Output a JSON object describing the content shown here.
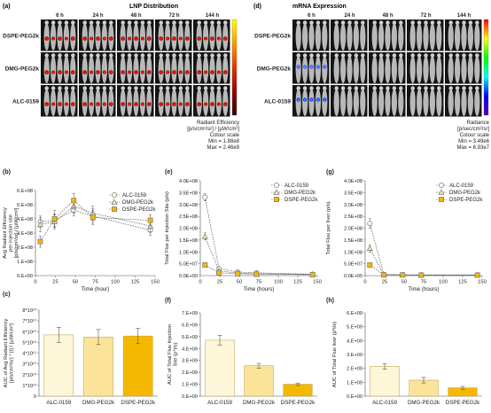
{
  "panels": {
    "a": {
      "letter": "(a)",
      "title": "LNP Distribution",
      "timepoints": [
        "6 h",
        "24 h",
        "48 h",
        "72 h",
        "144 h"
      ],
      "rows": [
        "DSPE-PEG2k",
        "DMG-PEG2k",
        "ALC-0159"
      ],
      "scale_title": "Radiant Efficiency",
      "scale_units": "[p/s/cm²/sr] / [µW/cm²]",
      "scale_label": "Colour scale",
      "scale_min": "Min = 1.88e8",
      "scale_max": "Max = 2.46e9",
      "colormap": [
        "#ffff00",
        "#ff9900",
        "#e63300",
        "#990000",
        "#330000"
      ]
    },
    "d": {
      "letter": "(d)",
      "title": "mRNA Expression",
      "timepoints": [
        "6 h",
        "24 h",
        "48 h",
        "72 h",
        "144 h"
      ],
      "rows": [
        "DSPE-PEG2k",
        "DMG-PEG2k",
        "ALC-0159"
      ],
      "scale_title": "Radiance",
      "scale_units": "[p/sec/cm²/sr]",
      "scale_label": "Colour scale",
      "scale_min": "Min = 3.49e6",
      "scale_max": "Max = 6.93e7",
      "colormap": [
        "#ff0000",
        "#ffff00",
        "#00ff00",
        "#00ffff",
        "#0000ff",
        "#5500aa"
      ]
    }
  },
  "chart_data": [
    {
      "id": "b",
      "letter": "(b)",
      "type": "line",
      "xlabel": "Time (hour)",
      "ylabel": "Avg Radiant Efficiency per injection site [p/s/cm²/sr] / [µW/cm²]",
      "ylabel_lines": [
        "Avg Radiant Efficiency",
        "per injection site",
        "[p/s/cm²/sr] / [µW/cm²]"
      ],
      "xlim": [
        0,
        150
      ],
      "ylim": [
        0,
        600000000
      ],
      "xticks": [
        0,
        25,
        50,
        75,
        100,
        125,
        150
      ],
      "yticks": [
        0,
        100000000,
        200000000,
        300000000,
        400000000,
        500000000,
        600000000
      ],
      "ytick_labels": [
        "0.E+00",
        "1.E+08",
        "2.E+08",
        "3.E+08",
        "4.E+08",
        "5.E+08",
        "6.E+08"
      ],
      "x": [
        6,
        24,
        48,
        72,
        144
      ],
      "legend_position": "top-right",
      "series": [
        {
          "name": "ALC-0159",
          "marker": "circle",
          "color": "#7a7a7a",
          "fill": "#ffffff",
          "values": [
            380000000,
            390000000,
            460000000,
            420000000,
            320000000
          ],
          "errors": [
            40000000,
            45000000,
            40000000,
            50000000,
            35000000
          ]
        },
        {
          "name": "DMG-PEG2k",
          "marker": "triangle",
          "color": "#7a7a7a",
          "fill": "#f5e6a8",
          "values": [
            360000000,
            380000000,
            490000000,
            440000000,
            350000000
          ],
          "errors": [
            50000000,
            50000000,
            50000000,
            50000000,
            40000000
          ]
        },
        {
          "name": "DSPE-PEG2k",
          "marker": "square",
          "color": "#7a7a7a",
          "fill": "#f2b800",
          "values": [
            240000000,
            400000000,
            530000000,
            410000000,
            390000000
          ],
          "errors": [
            40000000,
            60000000,
            50000000,
            50000000,
            40000000
          ]
        }
      ]
    },
    {
      "id": "e",
      "letter": "(e)",
      "type": "line",
      "xlabel": "Time (hours)",
      "ylabel": "Total Flux per Injection Site (p/s)",
      "ylabel_lines": [
        "Total Flux per Injection Site (p/s)"
      ],
      "xlim": [
        0,
        150
      ],
      "ylim": [
        0,
        400000000
      ],
      "xticks": [
        0,
        25,
        50,
        75,
        100,
        125,
        150
      ],
      "yticks": [
        0,
        50000000,
        100000000,
        150000000,
        200000000,
        250000000,
        300000000,
        350000000,
        400000000
      ],
      "ytick_labels": [
        "0.0E+00",
        "5.0E+07",
        "1.0E+08",
        "1.5E+08",
        "2.0E+08",
        "2.5E+08",
        "3.0E+08",
        "3.5E+08",
        "4.0E+08"
      ],
      "x": [
        6,
        24,
        48,
        72,
        144
      ],
      "legend_position": "top-right",
      "series": [
        {
          "name": "ALC-0159",
          "marker": "circle",
          "color": "#7a7a7a",
          "fill": "#ffffff",
          "values": [
            330000000,
            30000000,
            15000000,
            12000000,
            6000000
          ],
          "errors": [
            15000000,
            5000000,
            3000000,
            2000000,
            1000000
          ]
        },
        {
          "name": "DMG-PEG2k",
          "marker": "triangle",
          "color": "#7a7a7a",
          "fill": "#f5e6a8",
          "values": [
            165000000,
            20000000,
            10000000,
            8000000,
            5000000
          ],
          "errors": [
            15000000,
            4000000,
            2000000,
            2000000,
            1000000
          ]
        },
        {
          "name": "DSPE-PEG2k",
          "marker": "square",
          "color": "#7a7a7a",
          "fill": "#f2b800",
          "values": [
            45000000,
            12000000,
            8000000,
            6000000,
            4000000
          ],
          "errors": [
            8000000,
            3000000,
            2000000,
            1000000,
            1000000
          ]
        }
      ]
    },
    {
      "id": "g",
      "letter": "(g)",
      "type": "line",
      "xlabel": "Time (hours)",
      "ylabel": "Total Flux per liver (p/s)",
      "ylabel_lines": [
        "Total Flux per liver (p/s)"
      ],
      "xlim": [
        0,
        150
      ],
      "ylim": [
        0,
        400000000
      ],
      "xticks": [
        0,
        25,
        50,
        75,
        100,
        125,
        150
      ],
      "yticks": [
        0,
        50000000,
        100000000,
        150000000,
        200000000,
        250000000,
        300000000,
        350000000,
        400000000
      ],
      "ytick_labels": [
        "0.0E+00",
        "5.0E+07",
        "1.0E+08",
        "1.5E+08",
        "2.0E+08",
        "2.5E+08",
        "3.0E+08",
        "3.5E+08",
        "4.0E+08"
      ],
      "x": [
        6,
        24,
        48,
        72,
        144
      ],
      "legend_position": "top-right",
      "series": [
        {
          "name": "ALC-0159",
          "marker": "circle",
          "color": "#7a7a7a",
          "fill": "#ffffff",
          "values": [
            220000000,
            5000000,
            4000000,
            3000000,
            3000000
          ],
          "errors": [
            20000000,
            1000000,
            1000000,
            1000000,
            1000000
          ]
        },
        {
          "name": "DMG-PEG2k",
          "marker": "triangle",
          "color": "#7a7a7a",
          "fill": "#f5e6a8",
          "values": [
            115000000,
            4000000,
            3000000,
            3000000,
            3000000
          ],
          "errors": [
            15000000,
            1000000,
            1000000,
            1000000,
            1000000
          ]
        },
        {
          "name": "DSPE-PEG2k",
          "marker": "square",
          "color": "#7a7a7a",
          "fill": "#f2b800",
          "values": [
            45000000,
            3000000,
            3000000,
            2000000,
            2000000
          ],
          "errors": [
            8000000,
            1000000,
            1000000,
            1000000,
            1000000
          ]
        }
      ]
    },
    {
      "id": "c",
      "letter": "(c)",
      "type": "bar",
      "categories": [
        "ALC-0159",
        "DMG-PEG2k",
        "DSPE-PEG2k"
      ],
      "ylabel": "AUC of Avg Radiant Efficiency [p/s/cm²/sr] * [t] / [µW/cm²]",
      "ylabel_lines": [
        "AUC of Avg Radiant Efficiency",
        "[p/s/cm²/sr] * [t] / [µW/cm²]"
      ],
      "ylim": [
        0,
        80000000000
      ],
      "yticks": [
        0,
        10000000000,
        20000000000,
        30000000000,
        40000000000,
        50000000000,
        60000000000,
        70000000000,
        80000000000
      ],
      "ytick_labels": [
        "0",
        "1*10¹⁰",
        "2*10¹⁰",
        "3*10¹⁰",
        "4*10¹⁰",
        "5*10¹⁰",
        "6*10¹⁰",
        "7*10¹⁰",
        "8*10¹⁰"
      ],
      "values": [
        57000000000,
        55000000000,
        56000000000
      ],
      "errors": [
        7000000000,
        7000000000,
        7000000000
      ],
      "colors": [
        "#fdf6d8",
        "#fbe49a",
        "#f5b800"
      ]
    },
    {
      "id": "f",
      "letter": "(f)",
      "type": "bar",
      "categories": [
        "ALC-0159",
        "DMG-PEG2k",
        "DSPE-PEG2k"
      ],
      "ylabel": "AUC of Total Flux Injection Site (p*t/s)",
      "ylabel_lines": [
        "AUC of Total Flux Injection",
        "Site (p*t/s)"
      ],
      "ylim": [
        0,
        7000000000
      ],
      "yticks": [
        0,
        1000000000,
        2000000000,
        3000000000,
        4000000000,
        5000000000,
        6000000000,
        7000000000
      ],
      "ytick_labels": [
        "0.E+00",
        "1.E+09",
        "2.E+09",
        "3.E+09",
        "4.E+09",
        "5.E+09",
        "6.E+09",
        "7.E+09"
      ],
      "values": [
        4700000000,
        2550000000,
        1000000000
      ],
      "errors": [
        400000000,
        200000000,
        100000000
      ],
      "colors": [
        "#fdf6d8",
        "#fbe49a",
        "#f5b800"
      ]
    },
    {
      "id": "h",
      "letter": "(h)",
      "type": "bar",
      "categories": [
        "ALC-0159",
        "DMG-PEG2k",
        "DSPE-PEG2k"
      ],
      "ylabel": "AUC of Total Flux liver (p*t/s)",
      "ylabel_lines": [
        "AUC of Total Flux liver (p*t/s)"
      ],
      "ylim": [
        0,
        6000000000
      ],
      "yticks": [
        0,
        1000000000,
        2000000000,
        3000000000,
        4000000000,
        5000000000,
        6000000000
      ],
      "ytick_labels": [
        "0.E+00",
        "1.E+09",
        "2.E+09",
        "3.E+09",
        "4.E+09",
        "5.E+09",
        "6.E+09"
      ],
      "values": [
        2150000000,
        1150000000,
        600000000
      ],
      "errors": [
        200000000,
        200000000,
        100000000
      ],
      "colors": [
        "#fdf6d8",
        "#fbe49a",
        "#f5b800"
      ]
    }
  ]
}
